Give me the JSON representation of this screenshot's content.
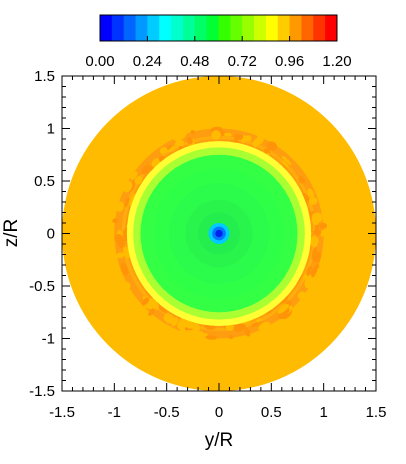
{
  "chart_data": {
    "type": "heatmap",
    "title": "",
    "xlabel": "y/R",
    "ylabel": "z/R",
    "xlim": [
      -1.5,
      1.5
    ],
    "ylim": [
      -1.5,
      1.5
    ],
    "x_ticks": [
      -1.5,
      -1,
      -0.5,
      0,
      0.5,
      1,
      1.5
    ],
    "x_tick_labels": [
      "-1.5",
      "-1",
      "-0.5",
      "0",
      "0.5",
      "1",
      "1.5"
    ],
    "y_ticks": [
      1.5,
      1,
      0.5,
      0,
      -0.5,
      -1,
      -1.5
    ],
    "y_tick_labels": [
      "1.5",
      "1",
      "0.5",
      "0",
      "-0.5",
      "-1",
      "-1.5"
    ],
    "grid": false,
    "colorbar": {
      "placement": "top",
      "min": 0,
      "max": 1.2,
      "ticks": [
        0,
        0.24,
        0.48,
        0.72,
        0.96,
        1.2
      ],
      "tick_labels": [
        "0.00",
        "0.24",
        "0.48",
        "0.72",
        "0.96",
        "1.20"
      ],
      "colors": [
        "#0000ff",
        "#0033ff",
        "#0066ff",
        "#0099ff",
        "#00ccff",
        "#00ffff",
        "#00ffcc",
        "#00ff99",
        "#00ff66",
        "#00ff33",
        "#33ff00",
        "#66ff00",
        "#99ff00",
        "#ccff00",
        "#ffff00",
        "#ffcc00",
        "#ff9900",
        "#ff6600",
        "#ff3300",
        "#ff0000"
      ]
    },
    "field": {
      "domain_radius": 1.5,
      "rings": [
        {
          "r_inner": 1.0,
          "r_outer": 1.5,
          "value": 1.01,
          "color": "#ffbb00"
        },
        {
          "r_inner": 0.82,
          "r_outer": 1.0,
          "value": 1.03,
          "color": "#ff9d10"
        },
        {
          "r_inner": 0.9,
          "r_outer": 0.93,
          "value": 0.99,
          "color": "#ffcc00"
        },
        {
          "r_inner": 0.82,
          "r_outer": 0.88,
          "value": 0.85,
          "color": "#ffff33"
        },
        {
          "r_inner": 0.75,
          "r_outer": 0.82,
          "value": 0.72,
          "color": "#aaff33"
        },
        {
          "r_inner": 0.1,
          "r_outer": 0.75,
          "value": 0.6,
          "color": "#33ff44"
        },
        {
          "r_inner": 0.06,
          "r_outer": 0.1,
          "value": 0.3,
          "color": "#00ccff"
        },
        {
          "r_inner": 0.0,
          "r_outer": 0.06,
          "value": 0.05,
          "color": "#0033ff"
        }
      ]
    }
  }
}
